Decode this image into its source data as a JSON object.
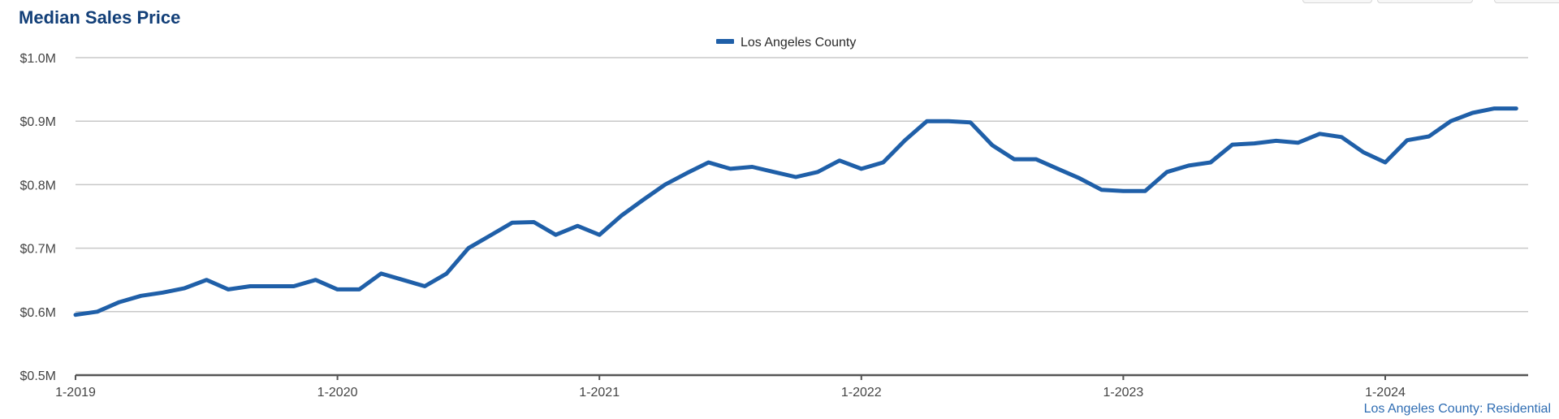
{
  "chart_data": {
    "type": "line",
    "title": "Median Sales Price",
    "xlabel": "",
    "ylabel": "",
    "y_tick_labels": [
      "$0.5M",
      "$0.6M",
      "$0.7M",
      "$0.8M",
      "$0.9M",
      "$1.0M"
    ],
    "y_ticks": [
      0.5,
      0.6,
      0.7,
      0.8,
      0.9,
      1.0
    ],
    "ylim": [
      0.5,
      1.0
    ],
    "x_tick_labels": [
      "1-2019",
      "1-2020",
      "1-2021",
      "1-2022",
      "1-2023",
      "1-2024"
    ],
    "x_tick_months": [
      0,
      12,
      24,
      36,
      48,
      60
    ],
    "xlim_months": [
      0,
      66.5
    ],
    "legend_position": "top-center",
    "grid": true,
    "source_note": "Los Angeles County: Residential",
    "series": [
      {
        "name": "Los Angeles County",
        "color": "#1f5fa8",
        "x_months": [
          0,
          1,
          2,
          3,
          4,
          5,
          6,
          7,
          8,
          9,
          10,
          11,
          12,
          13,
          14,
          15,
          16,
          17,
          18,
          19,
          20,
          21,
          22,
          23,
          24,
          25,
          26,
          27,
          28,
          29,
          30,
          31,
          32,
          33,
          34,
          35,
          36,
          37,
          38,
          39,
          40,
          41,
          42,
          43,
          44,
          45,
          46,
          47,
          48,
          49,
          50,
          51,
          52,
          53,
          54,
          55,
          56,
          57,
          58,
          59,
          60,
          61,
          62,
          63,
          64,
          65,
          66
        ],
        "values": [
          0.595,
          0.6,
          0.615,
          0.625,
          0.63,
          0.637,
          0.65,
          0.635,
          0.64,
          0.64,
          0.64,
          0.65,
          0.635,
          0.635,
          0.66,
          0.65,
          0.64,
          0.66,
          0.7,
          0.72,
          0.74,
          0.741,
          0.721,
          0.735,
          0.721,
          0.751,
          0.776,
          0.8,
          0.818,
          0.835,
          0.825,
          0.828,
          0.82,
          0.812,
          0.82,
          0.838,
          0.825,
          0.835,
          0.87,
          0.9,
          0.9,
          0.898,
          0.862,
          0.84,
          0.84,
          0.825,
          0.81,
          0.792,
          0.79,
          0.79,
          0.82,
          0.83,
          0.835,
          0.863,
          0.865,
          0.869,
          0.866,
          0.88,
          0.875,
          0.851,
          0.835,
          0.87,
          0.876,
          0.9,
          0.913,
          0.92,
          0.92
        ]
      }
    ]
  }
}
